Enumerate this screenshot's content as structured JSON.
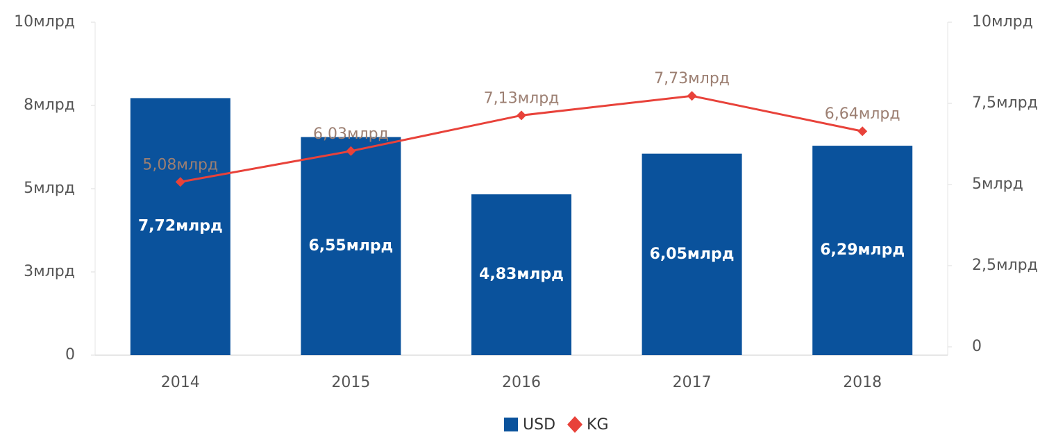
{
  "chart_data": {
    "type": "bar",
    "categories": [
      "2014",
      "2015",
      "2016",
      "2017",
      "2018"
    ],
    "series": [
      {
        "name": "USD",
        "type": "bar",
        "color": "#0a529c",
        "values": [
          7.72,
          6.55,
          4.83,
          6.05,
          6.29
        ],
        "value_labels": [
          "7,72млрд",
          "6,55млрд",
          "4,83млрд",
          "6,05млрд",
          "6,29млрд"
        ]
      },
      {
        "name": "KG",
        "type": "line",
        "axis": "y2",
        "color": "#e8423a",
        "values": [
          5.08,
          6.03,
          7.13,
          7.73,
          6.64
        ],
        "value_labels": [
          "5,08млрд",
          "6,03млрд",
          "7,13млрд",
          "7,73млрд",
          "6,64млрд"
        ]
      }
    ],
    "ylim": [
      0,
      10
    ],
    "yticks": [
      0,
      {
        "value": 2.5,
        "label": "3млрд"
      },
      {
        "value": 5,
        "label": "5млрд"
      },
      {
        "value": 7.5,
        "label": "8млрд"
      },
      {
        "value": 10,
        "label": "10млрд"
      }
    ],
    "y2lim": [
      0,
      10
    ],
    "y2ticks": [
      0,
      {
        "value": 2.5,
        "label": "2,5млрд"
      },
      {
        "value": 5,
        "label": "5млрд"
      },
      {
        "value": 7.5,
        "label": "7,5млрд"
      },
      {
        "value": 10,
        "label": "10млрд"
      }
    ],
    "legend": "bottom"
  }
}
